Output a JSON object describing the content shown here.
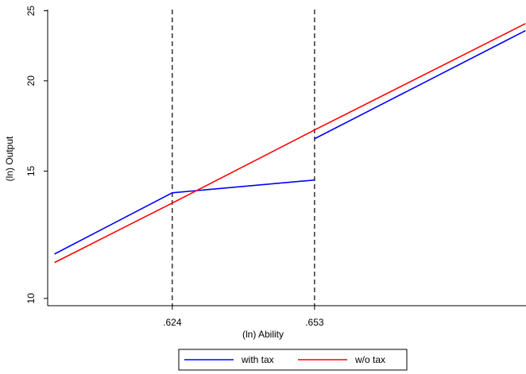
{
  "chart_data": {
    "type": "line",
    "xlabel": "(ln) Ability",
    "ylabel": "(ln) Output",
    "xlim": [
      0.5986,
      0.6961
    ],
    "ylim": [
      9.77,
      25.1
    ],
    "ylog": true,
    "xticks": [
      {
        "value": 0.624,
        "label": ".624"
      },
      {
        "value": 0.653,
        "label": ".653"
      }
    ],
    "yticks": [
      10,
      15,
      20,
      25
    ],
    "xgrid": true,
    "series": [
      {
        "name": "with tax",
        "color": "#0000ff",
        "x": [
          0.6,
          0.624,
          0.653,
          0.653,
          0.653,
          0.696
        ],
        "values": [
          11.52,
          14.0,
          14.58,
          null,
          16.63,
          23.47
        ]
      },
      {
        "name": "w/o tax",
        "color": "#ff0000",
        "x": [
          0.6,
          0.624,
          0.653,
          0.696
        ],
        "values": [
          11.21,
          13.55,
          17.1,
          24.0
        ]
      }
    ]
  }
}
